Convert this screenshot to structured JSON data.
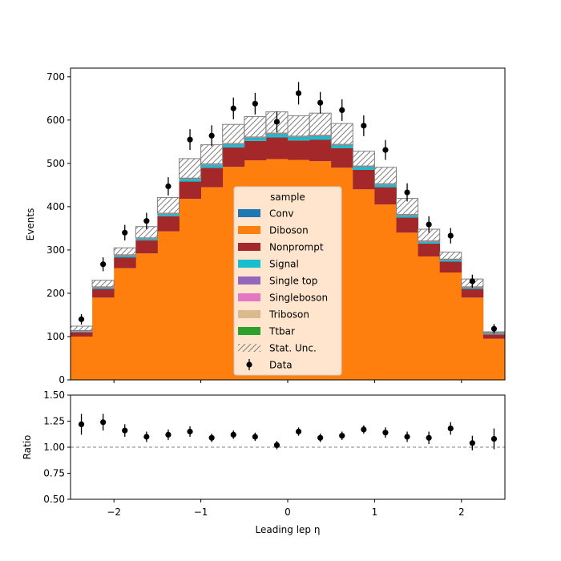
{
  "chart_data": {
    "type": "bar",
    "stacked": true,
    "xlabel": "Leading lep η",
    "ylabel": "Events",
    "xlim": [
      -2.5,
      2.5
    ],
    "ylim": [
      0,
      720
    ],
    "bin_edges": [
      -2.5,
      -2.25,
      -2.0,
      -1.75,
      -1.5,
      -1.25,
      -1.0,
      -0.75,
      -0.5,
      -0.25,
      0.0,
      0.25,
      0.5,
      0.75,
      1.0,
      1.25,
      1.5,
      1.75,
      2.0,
      2.25,
      2.5
    ],
    "x_ticks": [
      -2,
      -1,
      0,
      1,
      2
    ],
    "x_tick_labels": [
      "−2",
      "−1",
      "0",
      "1",
      "2"
    ],
    "y_ticks": [
      0,
      100,
      200,
      300,
      400,
      500,
      600,
      700
    ],
    "legend": {
      "title": "sample",
      "position": "center"
    },
    "series": [
      {
        "name": "Conv",
        "color": "#1f77b4",
        "values": [
          0,
          0,
          0,
          0,
          0,
          0,
          0,
          0,
          0,
          0,
          0,
          0,
          0,
          0,
          0,
          0,
          0,
          0,
          0,
          0
        ]
      },
      {
        "name": "Diboson",
        "color": "#ff7f0e",
        "values": [
          100,
          190,
          258,
          292,
          343,
          418,
          445,
          492,
          507,
          510,
          508,
          505,
          490,
          440,
          405,
          340,
          285,
          248,
          190,
          95
        ]
      },
      {
        "name": "Nonprompt",
        "color": "#a4282a",
        "values": [
          10,
          20,
          25,
          30,
          35,
          40,
          45,
          45,
          45,
          50,
          45,
          50,
          45,
          45,
          40,
          35,
          30,
          25,
          20,
          10
        ]
      },
      {
        "name": "Signal",
        "color": "#17becf",
        "values": [
          2,
          3,
          4,
          4,
          5,
          6,
          7,
          7,
          7,
          8,
          8,
          8,
          7,
          7,
          6,
          5,
          4,
          4,
          3,
          2
        ]
      },
      {
        "name": "Single top",
        "color": "#9467bd",
        "values": [
          0.5,
          0.5,
          0.5,
          0.5,
          0.5,
          0.5,
          0.5,
          0.5,
          0.5,
          0.5,
          0.5,
          0.5,
          0.5,
          0.5,
          0.5,
          0.5,
          0.5,
          0.5,
          0.5,
          0.5
        ]
      },
      {
        "name": "Singleboson",
        "color": "#e377c2",
        "values": [
          0.5,
          0.5,
          0.5,
          0.5,
          0.5,
          0.5,
          0.5,
          0.5,
          0.5,
          0.5,
          0.5,
          0.5,
          0.5,
          0.5,
          0.5,
          0.5,
          0.5,
          0.5,
          0.5,
          0.5
        ]
      },
      {
        "name": "Triboson",
        "color": "#dbb98e",
        "values": [
          0.5,
          0.5,
          0.5,
          0.5,
          0.5,
          0.5,
          0.5,
          0.5,
          0.5,
          0.5,
          0.5,
          0.5,
          0.5,
          0.5,
          0.5,
          0.5,
          0.5,
          0.5,
          0.5,
          0.5
        ]
      },
      {
        "name": "Ttbar",
        "color": "#2ca02c",
        "values": [
          0.5,
          0.5,
          0.5,
          0.5,
          0.5,
          0.5,
          0.5,
          0.5,
          0.5,
          0.5,
          0.5,
          0.5,
          0.5,
          0.5,
          0.5,
          0.5,
          0.5,
          0.5,
          0.5,
          0.5
        ]
      }
    ],
    "stat_unc": {
      "name": "Stat. Unc.",
      "upper": [
        124,
        230,
        305,
        354,
        421,
        511,
        543,
        590,
        608,
        619,
        610,
        616,
        592,
        528,
        491,
        419,
        348,
        295,
        233,
        111
      ]
    },
    "data": {
      "name": "Data",
      "x": [
        -2.375,
        -2.125,
        -1.875,
        -1.625,
        -1.375,
        -1.125,
        -0.875,
        -0.625,
        -0.375,
        -0.125,
        0.125,
        0.375,
        0.625,
        0.875,
        1.125,
        1.375,
        1.625,
        1.875,
        2.125,
        2.375
      ],
      "values": [
        140,
        267,
        340,
        367,
        447,
        555,
        564,
        627,
        638,
        596,
        662,
        640,
        623,
        587,
        531,
        433,
        359,
        333,
        228,
        118
      ],
      "errors": [
        12,
        16,
        18,
        19,
        21,
        24,
        24,
        25,
        25,
        24,
        26,
        25,
        25,
        24,
        23,
        21,
        19,
        18,
        15,
        11
      ]
    },
    "ratio_panel": {
      "ylabel": "Ratio",
      "ylim": [
        0.5,
        1.5
      ],
      "y_ticks": [
        0.5,
        0.75,
        1.0,
        1.25,
        1.5
      ],
      "y_tick_labels": [
        "0.50",
        "0.75",
        "1.00",
        "1.25",
        "1.50"
      ],
      "reference_line": 1.0,
      "values": [
        1.22,
        1.24,
        1.16,
        1.1,
        1.12,
        1.15,
        1.09,
        1.12,
        1.1,
        1.02,
        1.15,
        1.09,
        1.11,
        1.17,
        1.14,
        1.1,
        1.09,
        1.18,
        1.04,
        1.08
      ],
      "errors": [
        0.1,
        0.08,
        0.06,
        0.05,
        0.05,
        0.05,
        0.04,
        0.04,
        0.04,
        0.04,
        0.04,
        0.04,
        0.04,
        0.04,
        0.05,
        0.05,
        0.06,
        0.06,
        0.07,
        0.1
      ]
    }
  }
}
